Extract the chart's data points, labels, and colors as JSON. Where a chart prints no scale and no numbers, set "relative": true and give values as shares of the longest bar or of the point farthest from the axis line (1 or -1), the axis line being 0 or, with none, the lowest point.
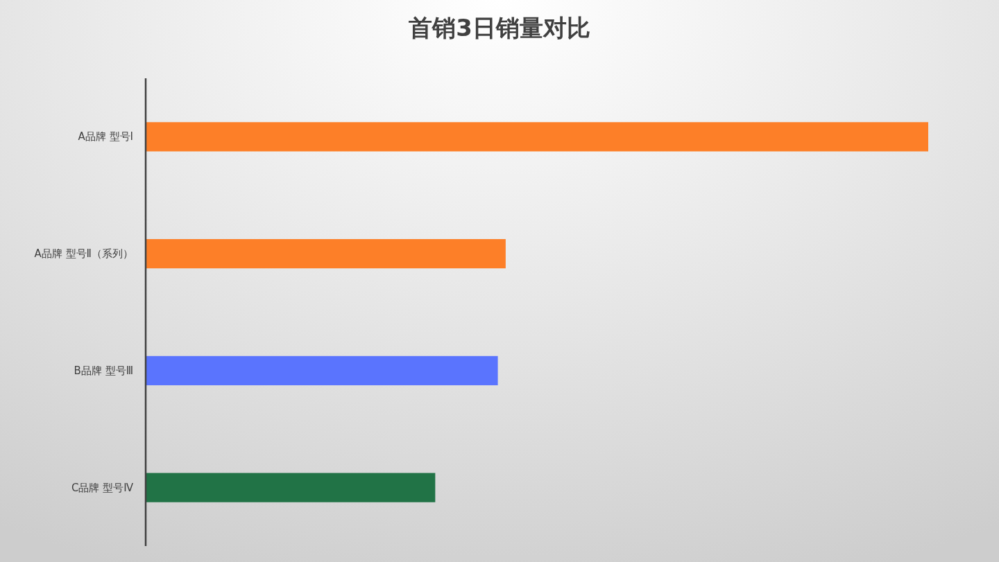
{
  "chart_data": {
    "type": "bar",
    "title": "首销3日销量对比",
    "orientation": "horizontal",
    "relative": true,
    "categories": [
      "A品牌 型号Ⅰ",
      "A品牌 型号Ⅱ（系列）",
      "B品牌 型号Ⅲ",
      "C品牌 型号Ⅳ"
    ],
    "values": [
      1,
      0.46,
      0.45,
      0.37
    ],
    "colors": [
      "#fd7f28",
      "#fd7f28",
      "#5a74fe",
      "#217346"
    ]
  }
}
